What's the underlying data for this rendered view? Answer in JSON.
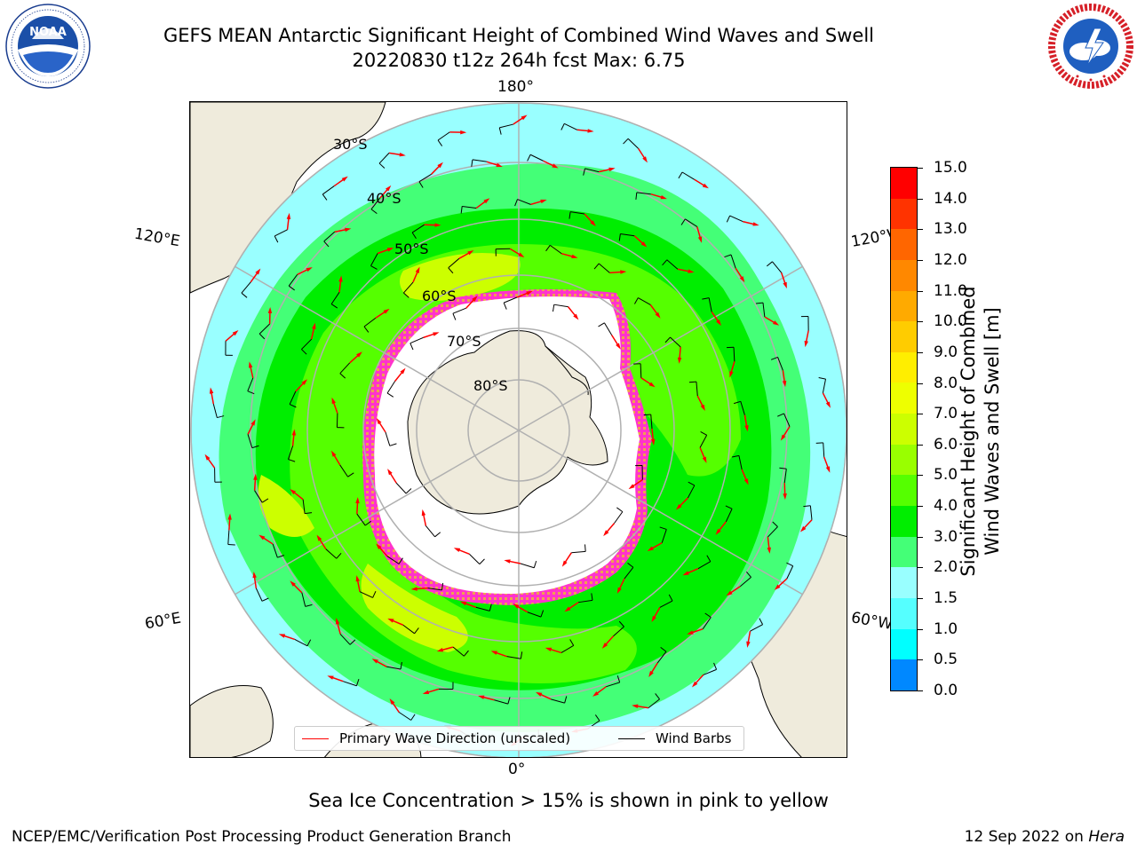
{
  "title": {
    "line1": "GEFS MEAN Antarctic Significant Height of Combined Wind Waves and Swell",
    "line2": "20220830 t12z 264h fcst   Max: 6.75"
  },
  "logos": {
    "left": {
      "name": "noaa-logo",
      "text": "NOAA",
      "ring_text": "NATIONAL OCEANIC AND ATMOSPHERIC ADMINISTRATION · U.S. DEPARTMENT OF COMMERCE"
    },
    "right": {
      "name": "nws-logo",
      "ring_text": "NATIONAL WEATHER SERVICE"
    }
  },
  "map": {
    "projection": "south-polar-stereographic",
    "lon_labels": {
      "top": "180°",
      "bottom": "0°",
      "upper_left": "120°E",
      "upper_right": "120°W",
      "lower_left": "60°E",
      "lower_right": "60°W"
    },
    "lat_labels": [
      "30°S",
      "40°S",
      "50°S",
      "60°S",
      "70°S",
      "80°S"
    ],
    "legend": {
      "wave_label": "Primary Wave Direction (unscaled)",
      "wave_color": "#ff0000",
      "barb_label": "Wind Barbs",
      "barb_color": "#000000"
    },
    "land_color": "#efebdc",
    "ice_edge_colors": [
      "#ff33cc",
      "#f0a050",
      "#ffff66"
    ]
  },
  "colorbar": {
    "title_line1": "Significant Height of Combined",
    "title_line2": "Wind Waves and Swell [m]",
    "ticks": [
      "15.0",
      "14.0",
      "13.0",
      "12.0",
      "11.0",
      "10.0",
      "9.0",
      "8.0",
      "7.0",
      "6.0",
      "5.0",
      "4.0",
      "3.0",
      "2.0",
      "1.5",
      "1.0",
      "0.5",
      "0.0"
    ],
    "colors": [
      "#ff0000",
      "#ff3300",
      "#ff6600",
      "#ff8800",
      "#ffaa00",
      "#ffcc00",
      "#ffee00",
      "#eeff00",
      "#ccff00",
      "#99ff00",
      "#55ff00",
      "#00ee00",
      "#44ff77",
      "#99ffff",
      "#55ffff",
      "#00ffff",
      "#0088ff",
      "#0000ff"
    ]
  },
  "note": "Sea Ice Concentration > 15% is shown in pink to yellow",
  "footer": {
    "left": "NCEP/EMC/Verification Post Processing Product Generation Branch",
    "right_date": "12 Sep 2022 on ",
    "right_host": "Hera"
  }
}
